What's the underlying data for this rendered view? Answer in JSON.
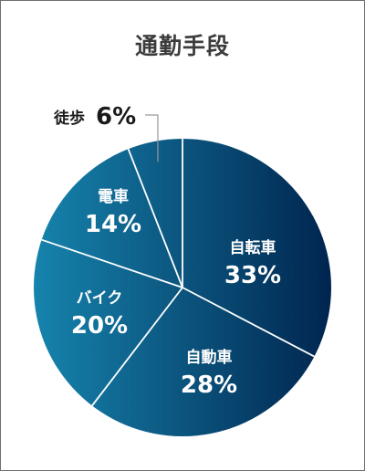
{
  "title": "通勤手段",
  "chart_data": {
    "type": "pie",
    "title": "通勤手段",
    "unit": "%",
    "slices": [
      {
        "label": "自転車",
        "value": 33,
        "display": "33%"
      },
      {
        "label": "自動車",
        "value": 28,
        "display": "28%"
      },
      {
        "label": "バイク",
        "value": 20,
        "display": "20%"
      },
      {
        "label": "電車",
        "value": 14,
        "display": "14%"
      },
      {
        "label": "徒歩",
        "value": 6,
        "display": "6%"
      }
    ],
    "start": "top, clockwise",
    "colors": {
      "gradient_left": "#1684ad",
      "gradient_right": "#00254f",
      "divider": "#ffffff",
      "leader": "#999999",
      "outside_text": "#1a1a1a",
      "inside_text": "#ffffff"
    }
  }
}
